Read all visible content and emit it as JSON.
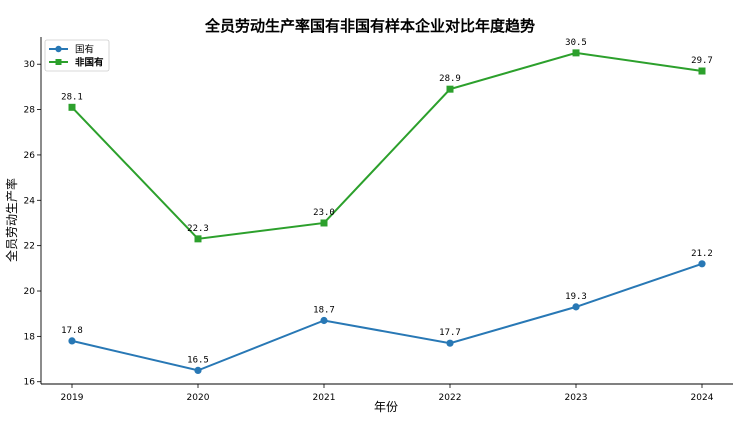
{
  "chart_data": {
    "type": "line",
    "title": "全员劳动生产率国有非国有样本企业对比年度趋势",
    "xlabel": "年份",
    "ylabel": "全员劳动生产率",
    "categories": [
      "2019",
      "2020",
      "2021",
      "2022",
      "2023",
      "2024"
    ],
    "ylim": [
      15.9,
      31.2
    ],
    "yticks": [
      16,
      18,
      20,
      22,
      24,
      26,
      28,
      30
    ],
    "grid": false,
    "legend_position": "top-left",
    "series": [
      {
        "name": "国有",
        "color": "#2878b5",
        "marker": "circle",
        "values": [
          17.8,
          16.5,
          18.7,
          17.7,
          19.3,
          21.2
        ],
        "labels": [
          "17.8",
          "16.5",
          "18.7",
          "17.7",
          "19.3",
          "21.2"
        ]
      },
      {
        "name": "非国有",
        "color": "#2ca02c",
        "marker": "square",
        "values": [
          28.1,
          22.3,
          23.0,
          28.9,
          30.5,
          29.7
        ],
        "labels": [
          "28.1",
          "22.3",
          "23.0",
          "28.9",
          "30.5",
          "29.7"
        ]
      }
    ]
  }
}
